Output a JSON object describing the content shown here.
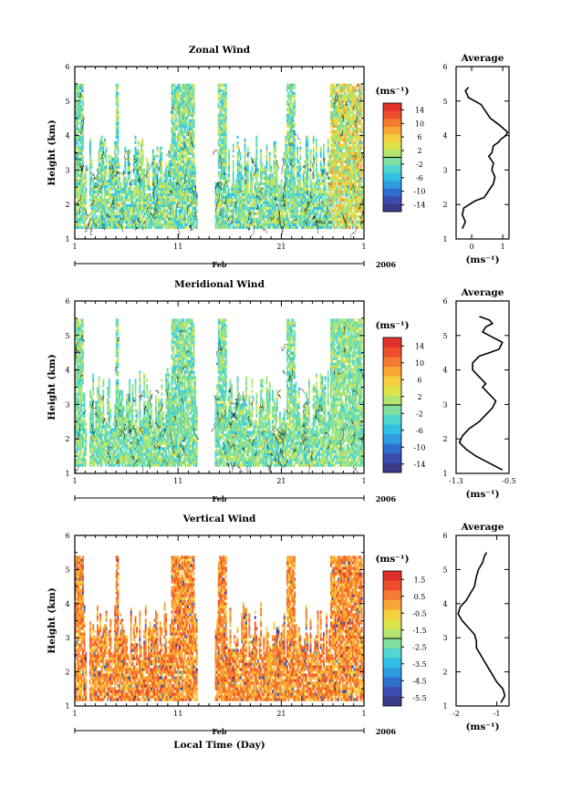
{
  "chart_data": [
    {
      "type": "heatmap",
      "title": "Zonal Wind",
      "ylabel": "Height (km)",
      "xlabel": "",
      "x_ticklabels": [
        "1",
        "11",
        "21",
        "1"
      ],
      "x_month_label": "Feb",
      "x_year_label": "2006",
      "y_ticklabels": [
        "1",
        "2",
        "3",
        "4",
        "5",
        "6"
      ],
      "ylim": [
        1,
        6
      ],
      "colorbar": {
        "unit": "(ms⁻¹)",
        "labels": [
          "14",
          "10",
          "6",
          "2",
          "-2",
          "-6",
          "-10",
          "-14"
        ],
        "range": [
          -16,
          16
        ]
      },
      "data_hint": {
        "mean": -1,
        "spread": 5,
        "late_bias": 8
      }
    },
    {
      "type": "line",
      "title": "Average",
      "xlabel": "(ms⁻¹)",
      "x_ticklabels": [
        "0",
        "1"
      ],
      "xlim": [
        -0.5,
        1.2
      ],
      "y_ticklabels": [
        "1",
        "2",
        "3",
        "4",
        "5",
        "6"
      ],
      "ylim": [
        1,
        6
      ],
      "x": [
        -0.3,
        -0.2,
        -0.3,
        -0.25,
        0.1,
        0.4,
        0.55,
        0.7,
        0.75,
        0.65,
        0.7,
        0.55,
        0.65,
        0.7,
        0.85,
        0.95,
        1.1,
        1.15,
        0.9,
        0.6,
        0.45,
        0.3,
        0.1,
        -0.1,
        -0.15,
        -0.2,
        -0.1
      ],
      "y": [
        1.3,
        1.5,
        1.7,
        1.9,
        2.1,
        2.2,
        2.4,
        2.6,
        2.8,
        3.0,
        3.2,
        3.4,
        3.5,
        3.7,
        3.8,
        3.9,
        4.0,
        4.1,
        4.3,
        4.5,
        4.7,
        4.9,
        5.0,
        5.1,
        5.2,
        5.3,
        5.4
      ]
    },
    {
      "type": "heatmap",
      "title": "Meridional Wind",
      "ylabel": "Height (km)",
      "xlabel": "",
      "x_ticklabels": [
        "1",
        "11",
        "21",
        "1"
      ],
      "x_month_label": "Feb",
      "x_year_label": "2006",
      "y_ticklabels": [
        "1",
        "2",
        "3",
        "4",
        "5",
        "6"
      ],
      "ylim": [
        1,
        6
      ],
      "colorbar": {
        "unit": "(ms⁻¹)",
        "labels": [
          "14",
          "10",
          "6",
          "2",
          "-2",
          "-6",
          "-10",
          "-14"
        ],
        "range": [
          -16,
          16
        ]
      },
      "data_hint": {
        "mean": -1,
        "spread": 4,
        "late_bias": 1
      }
    },
    {
      "type": "line",
      "title": "Average",
      "xlabel": "(ms⁻¹)",
      "x_ticklabels": [
        "-1.3",
        "-0.5"
      ],
      "xlim": [
        -1.3,
        -0.5
      ],
      "y_ticklabels": [
        "1",
        "2",
        "3",
        "4",
        "5",
        "6"
      ],
      "ylim": [
        1,
        6
      ],
      "x": [
        -0.6,
        -0.8,
        -1.0,
        -1.15,
        -1.25,
        -1.2,
        -1.1,
        -0.95,
        -0.85,
        -0.75,
        -0.7,
        -0.8,
        -0.9,
        -0.85,
        -0.95,
        -1.05,
        -1.05,
        -0.95,
        -0.8,
        -0.65,
        -0.6,
        -0.75,
        -0.9,
        -0.85,
        -0.75,
        -0.8,
        -0.95
      ],
      "y": [
        1.1,
        1.3,
        1.5,
        1.7,
        1.9,
        2.1,
        2.3,
        2.5,
        2.7,
        2.9,
        3.1,
        3.3,
        3.5,
        3.6,
        3.8,
        4.0,
        4.2,
        4.4,
        4.5,
        4.6,
        4.8,
        4.95,
        5.1,
        5.25,
        5.35,
        5.45,
        5.55
      ]
    },
    {
      "type": "heatmap",
      "title": "Vertical Wind",
      "ylabel": "Height (km)",
      "xlabel": "Local Time (Day)",
      "x_ticklabels": [
        "1",
        "11",
        "21",
        "1"
      ],
      "x_month_label": "Feb",
      "x_year_label": "2006",
      "y_ticklabels": [
        "1",
        "2",
        "3",
        "4",
        "5",
        "6"
      ],
      "ylim": [
        1,
        6
      ],
      "colorbar": {
        "unit": "(ms⁻¹)",
        "labels": [
          "1.5",
          "0.5",
          "-0.5",
          "-1.5",
          "-2.5",
          "-3.5",
          "-4.5",
          "-5.5"
        ],
        "range": [
          -6,
          2
        ]
      },
      "data_hint": {
        "mean": 0.3,
        "spread": 0.9,
        "late_bias": 0
      }
    },
    {
      "type": "line",
      "title": "Average",
      "xlabel": "(ms⁻¹)",
      "x_ticklabels": [
        "-2",
        "-1"
      ],
      "xlim": [
        -2,
        -0.7
      ],
      "y_ticklabels": [
        "1",
        "2",
        "3",
        "4",
        "5",
        "6"
      ],
      "ylim": [
        1,
        6
      ],
      "x": [
        -0.9,
        -0.8,
        -0.85,
        -1.0,
        -1.1,
        -1.2,
        -1.3,
        -1.4,
        -1.5,
        -1.5,
        -1.55,
        -1.7,
        -1.85,
        -1.95,
        -1.9,
        -1.75,
        -1.65,
        -1.55,
        -1.5,
        -1.45,
        -1.35,
        -1.3,
        -1.25
      ],
      "y": [
        1.1,
        1.3,
        1.5,
        1.7,
        1.9,
        2.1,
        2.3,
        2.5,
        2.7,
        2.9,
        3.1,
        3.3,
        3.5,
        3.7,
        3.9,
        4.1,
        4.3,
        4.5,
        4.8,
        5.0,
        5.2,
        5.4,
        5.5
      ]
    }
  ]
}
